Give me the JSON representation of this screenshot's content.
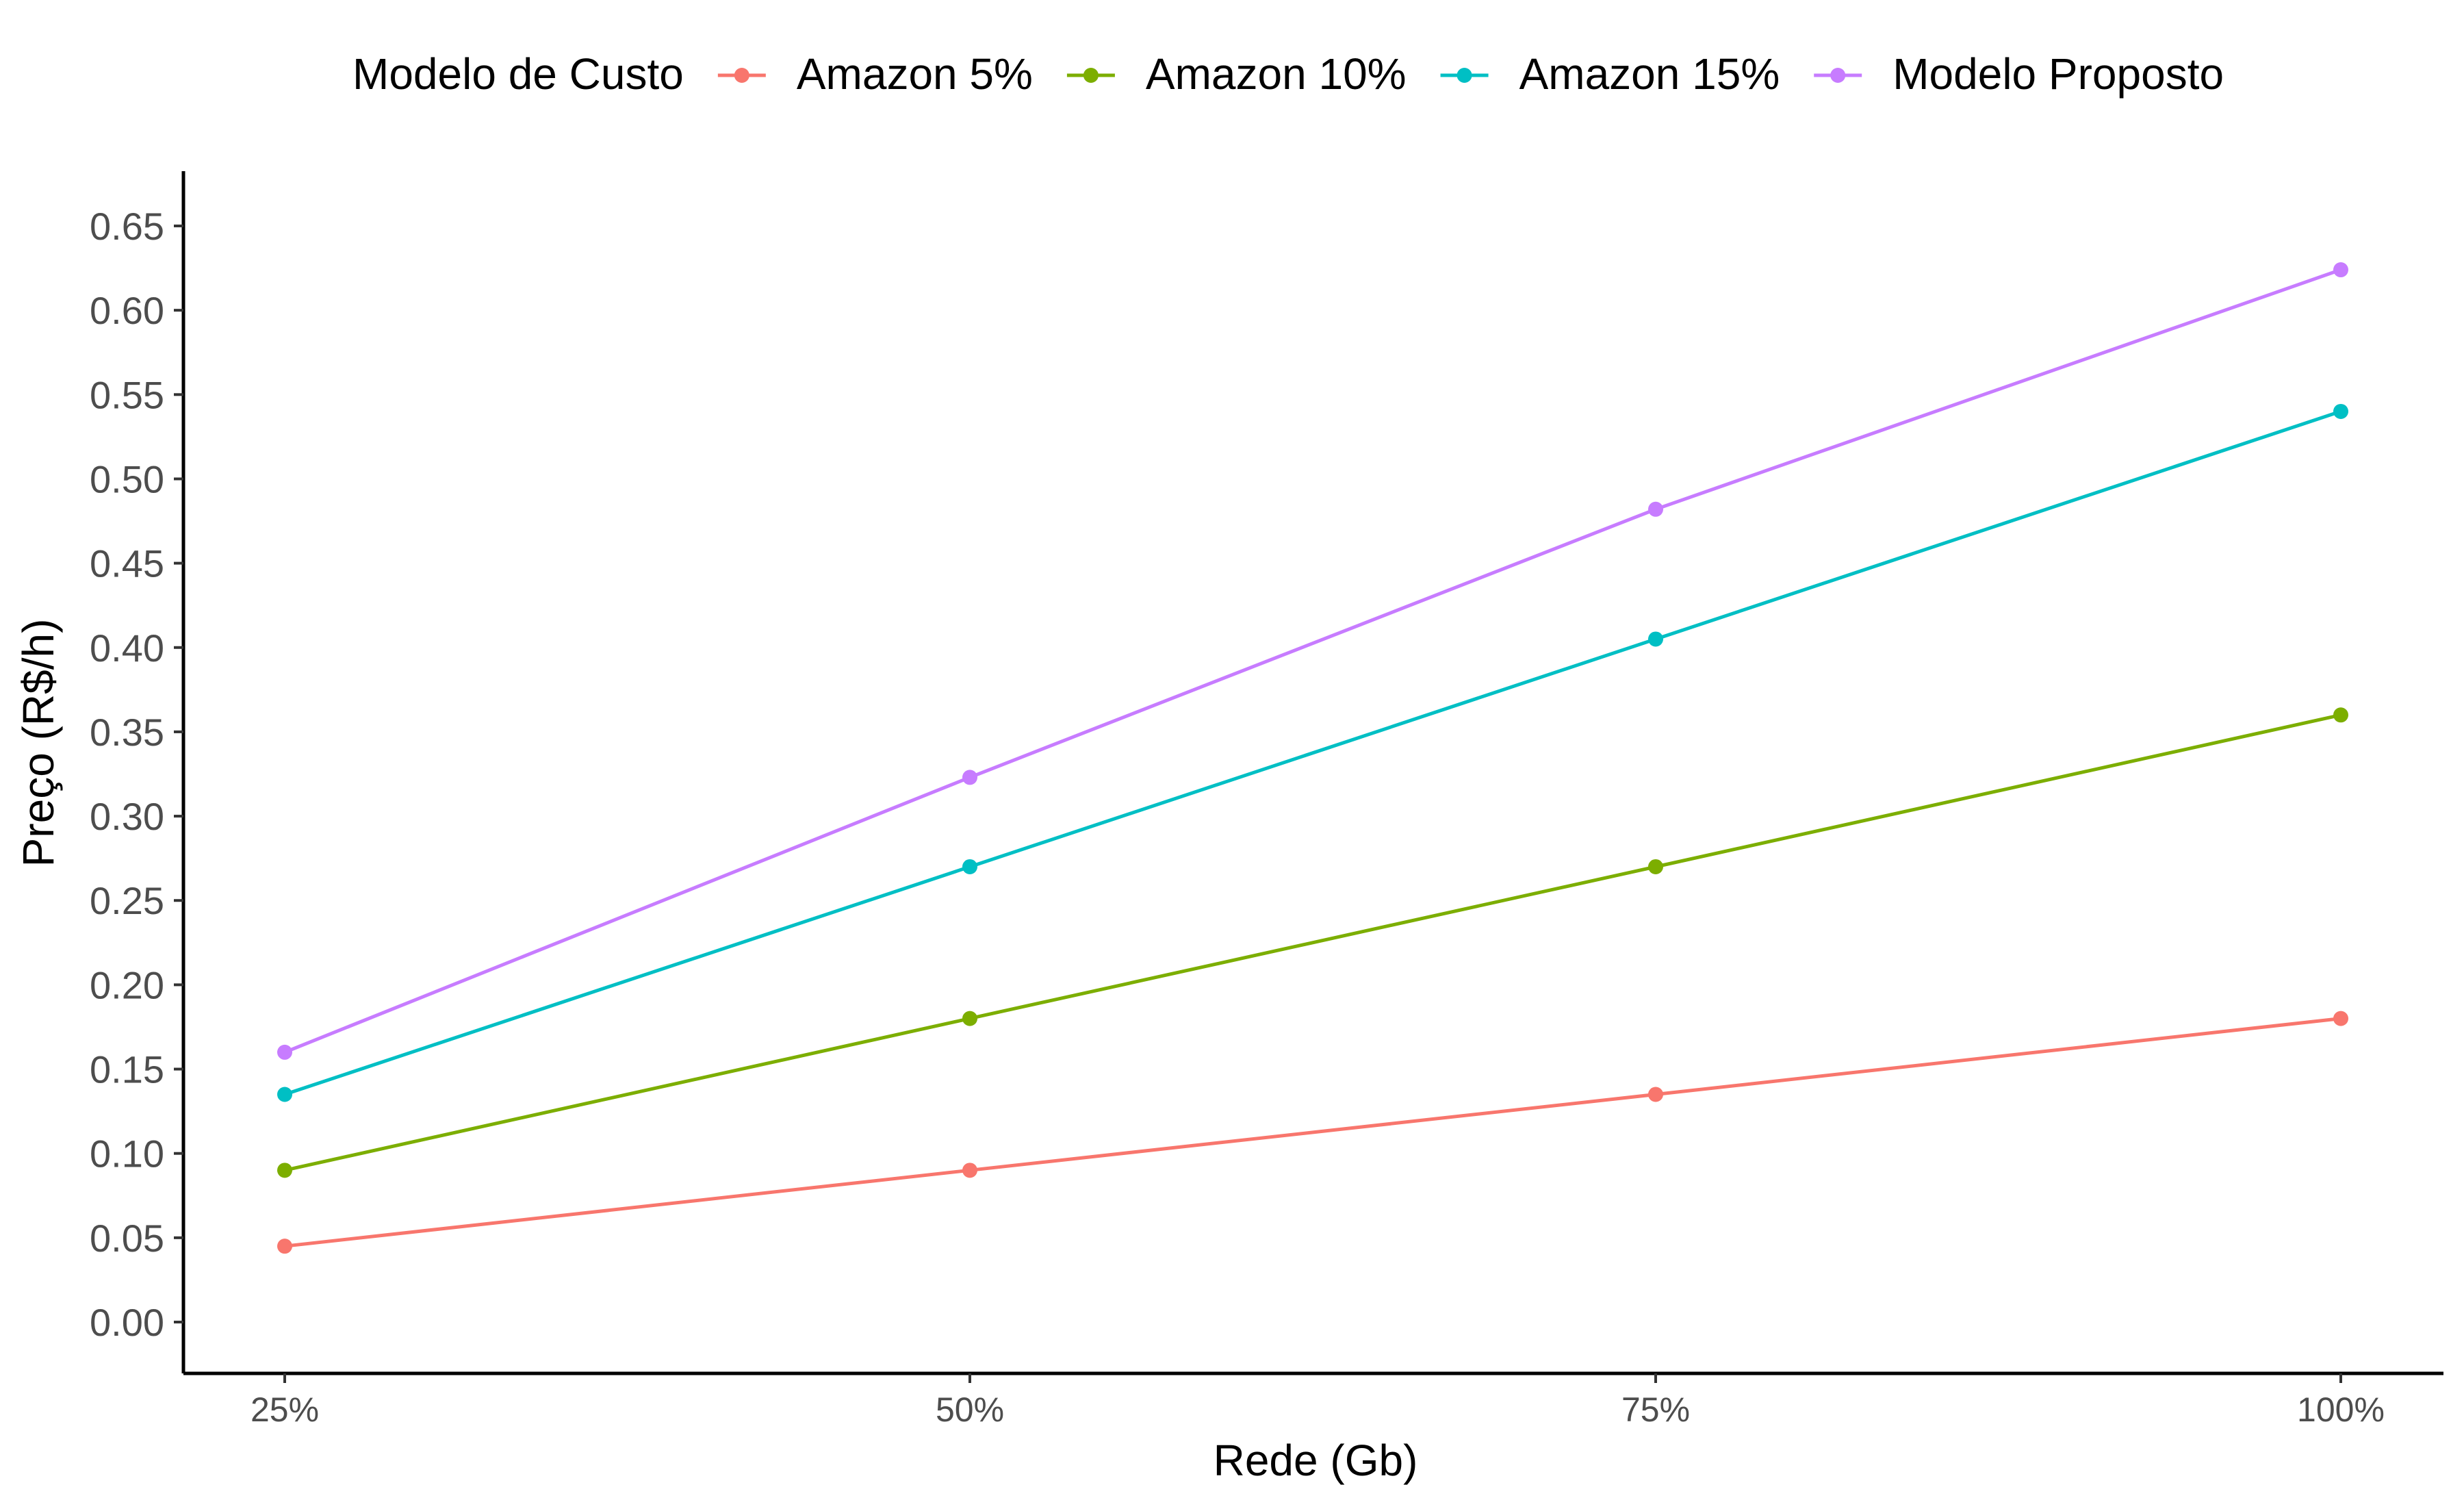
{
  "chart_data": {
    "type": "line",
    "title": "",
    "xlabel": "Rede (Gb)",
    "ylabel": "Preço (R$/h)",
    "categories": [
      "25%",
      "50%",
      "75%",
      "100%"
    ],
    "ylim": [
      -0.03,
      0.685
    ],
    "yticks": [
      0.0,
      0.05,
      0.1,
      0.15,
      0.2,
      0.25,
      0.3,
      0.35,
      0.4,
      0.45,
      0.5,
      0.55,
      0.6,
      0.65
    ],
    "grid": false,
    "legend": {
      "title": "Modelo de Custo",
      "position": "top"
    },
    "series": [
      {
        "name": "Amazon 5%",
        "color": "#F8766D",
        "values": [
          0.045,
          0.09,
          0.135,
          0.18
        ]
      },
      {
        "name": "Amazon 10%",
        "color": "#7CAE00",
        "values": [
          0.09,
          0.18,
          0.27,
          0.36
        ]
      },
      {
        "name": "Amazon 15%",
        "color": "#00BFC4",
        "values": [
          0.135,
          0.27,
          0.405,
          0.54
        ]
      },
      {
        "name": "Modelo Proposto",
        "color": "#C77CFF",
        "values": [
          0.16,
          0.323,
          0.482,
          0.624
        ]
      }
    ]
  }
}
